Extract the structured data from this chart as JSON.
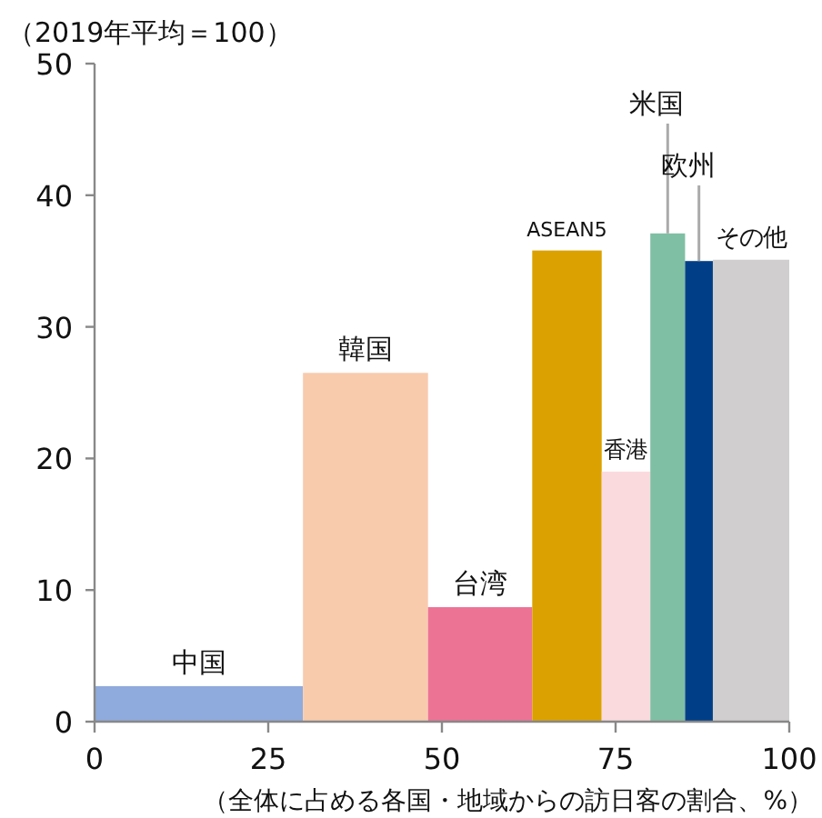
{
  "chart_data": {
    "type": "histogram",
    "ylabel": "（2019年平均＝100）",
    "xlabel": "（全体に占める各国・地域からの訪日客の割合、%）",
    "categories": [
      "中国",
      "韓国",
      "台湾",
      "ASEAN5",
      "香港",
      "米国",
      "欧州",
      "その他"
    ],
    "bins": [
      0,
      30,
      48,
      63,
      73,
      80,
      85,
      89,
      100
    ],
    "values": [
      2.7,
      26.5,
      8.7,
      35.8,
      19.0,
      37.1,
      35.0,
      35.1
    ],
    "colors": [
      "#8faadc",
      "#f8cbad",
      "#ed7395",
      "#dba100",
      "#fadadd",
      "#7fbfa4",
      "#003f87",
      "#d0cece"
    ],
    "xlim": [
      0,
      100
    ],
    "xticks": [
      0,
      25,
      50,
      75,
      100
    ],
    "ylim": [
      0,
      50
    ],
    "yticks": [
      0,
      10,
      20,
      30,
      40,
      50
    ],
    "grid": false
  }
}
